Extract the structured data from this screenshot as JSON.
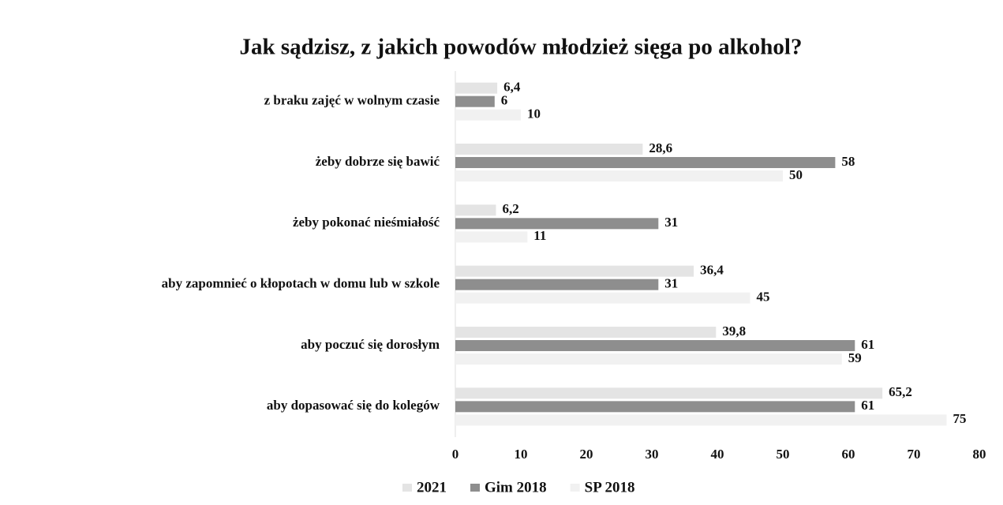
{
  "chart_data": {
    "type": "hbar",
    "title": "Jak sądzisz, z jakich powodów młodzież sięga po alkohol?",
    "categories": [
      "z braku zajęć w wolnym czasie",
      "żeby dobrze się bawić",
      "żeby pokonać nieśmiałość",
      "aby zapomnieć o kłopotach w domu lub w szkole",
      "aby poczuć się dorosłym",
      "aby dopasować się do kolegów"
    ],
    "series": [
      {
        "name": "2021",
        "color": "#e4e4e4",
        "values": [
          6.4,
          28.6,
          6.2,
          36.4,
          39.8,
          65.2
        ],
        "value_labels": [
          "6,4",
          "28,6",
          "6,2",
          "36,4",
          "39,8",
          "65,2"
        ]
      },
      {
        "name": "Gim 2018",
        "color": "#8e8e8e",
        "values": [
          6,
          58,
          31,
          31,
          61,
          61
        ]
      },
      {
        "name": "SP 2018",
        "color": "#f1f1f1",
        "values": [
          10,
          50,
          11,
          45,
          59,
          75
        ]
      }
    ],
    "xlim": [
      0,
      80
    ],
    "xticks": [
      0,
      10,
      20,
      30,
      40,
      50,
      60,
      70,
      80
    ],
    "legend": "bottom"
  }
}
